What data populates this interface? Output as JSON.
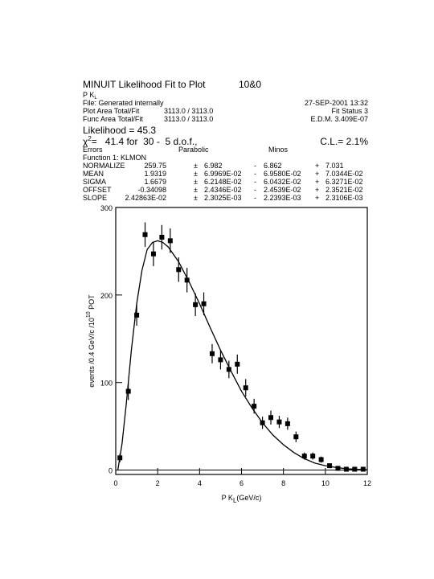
{
  "header": {
    "title": "MINUIT Likelihood Fit to Plot",
    "plot_id": "10&0",
    "plot_name": "P K",
    "plot_name_sub": "L",
    "file": "File: Generated internally",
    "date": "27-SEP-2001 13:32",
    "plot_area_label": "Plot Area Total/Fit",
    "plot_area": "3113.0 / 3113.0",
    "fit_status": "Fit Status  3",
    "func_area_label": "Func Area Total/Fit",
    "func_area": "3113.0 / 3113.0",
    "edm": "E.D.M. 3.409E-07",
    "likelihood": "Likelihood =    45.3",
    "chi_symbol": "χ",
    "chi_sup": "2",
    "chi_text": "=   41.4 for  30 -  5 d.o.f.,",
    "cl": "C.L.=  2.1%",
    "errors": "Errors",
    "parabolic": "Parabolic",
    "minos": "Minos",
    "function": "Function  1: KLMON"
  },
  "table": {
    "rows": [
      [
        "NORMALIZE",
        "259.75",
        "±",
        "6.982",
        "-",
        "6.862",
        "+",
        "7.031"
      ],
      [
        "MEAN",
        "1.9319",
        "±",
        "6.9969E-02",
        "-",
        "6.9580E-02",
        "+",
        "7.0344E-02"
      ],
      [
        "SIGMA",
        "1.6679",
        "±",
        "6.2148E-02",
        "-",
        "6.0432E-02",
        "+",
        "6.3271E-02"
      ],
      [
        "OFFSET",
        "-0.34098",
        "±",
        "2.4346E-02",
        "-",
        "2.4539E-02",
        "+",
        "2.3521E-02"
      ],
      [
        "SLOPE",
        "2.42863E-02",
        "±",
        "2.3025E-03",
        "-",
        "2.2393E-03",
        "+",
        "2.3106E-03"
      ]
    ]
  },
  "chart_data": {
    "type": "scatter",
    "x_label": "P K",
    "x_label_sub": "L",
    "x_label_end": "(GeV/c)",
    "y_label": "events /0.4 GeV/c /10",
    "y_label_sup": "10",
    "y_label_end": " POT",
    "xlim": [
      0,
      12
    ],
    "ylim": [
      -5,
      300
    ],
    "xticks": [
      0,
      2,
      4,
      6,
      8,
      10,
      12
    ],
    "yticks": [
      0,
      100,
      200,
      300
    ],
    "series": [
      {
        "style": "points",
        "color": "#000000",
        "x": [
          0.2,
          0.6,
          1.0,
          1.4,
          1.8,
          2.2,
          2.6,
          3.0,
          3.4,
          3.8,
          4.2,
          4.6,
          5.0,
          5.4,
          5.8,
          6.2,
          6.6,
          7.0,
          7.4,
          7.8,
          8.2,
          8.6,
          9.0,
          9.4,
          9.8,
          10.2,
          10.6,
          11.0,
          11.4,
          11.8
        ],
        "values": [
          14,
          90,
          177,
          269,
          247,
          266,
          262,
          229,
          217,
          189,
          190,
          133,
          126,
          115,
          121,
          94,
          73,
          54,
          60,
          55,
          53,
          38,
          16,
          16,
          12,
          5,
          2,
          1,
          1,
          1
        ],
        "errors": [
          5,
          10,
          12,
          14,
          14,
          14,
          14,
          14,
          14,
          13,
          13,
          11,
          11,
          10,
          11,
          10,
          8.5,
          7,
          8,
          7,
          7,
          6,
          4,
          4,
          3.5,
          2,
          1.5,
          1,
          1,
          1
        ]
      },
      {
        "style": "line",
        "color": "#000000",
        "x": [
          0.1,
          0.3,
          0.5,
          0.75,
          1.0,
          1.25,
          1.5,
          1.75,
          2.0,
          2.25,
          2.5,
          3.0,
          3.5,
          4.0,
          4.5,
          5.0,
          5.5,
          6.0,
          6.5,
          7.0,
          7.5,
          8.0,
          8.5,
          9.0,
          9.5,
          10.0,
          10.5,
          11.0,
          11.5,
          12.0
        ],
        "values": [
          0,
          30,
          75,
          138,
          190,
          228,
          252,
          260,
          262,
          260,
          255,
          238,
          215,
          190,
          163,
          137,
          113,
          90,
          71,
          54,
          40,
          29,
          20,
          13,
          8,
          5,
          3,
          1.5,
          0.8,
          0.4
        ]
      }
    ]
  }
}
